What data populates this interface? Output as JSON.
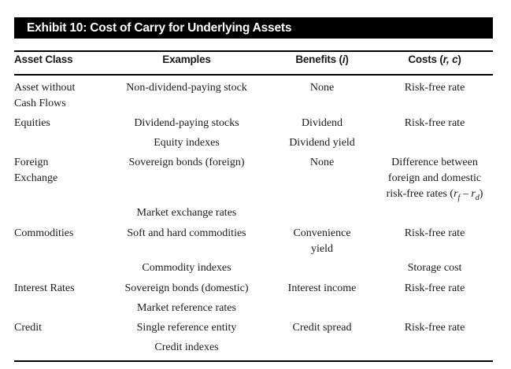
{
  "exhibit": {
    "title": "Exhibit 10: Cost of Carry for Underlying Assets"
  },
  "headers": {
    "asset_class": "Asset Class",
    "examples": "Examples",
    "benefits_prefix": "Benefits (",
    "benefits_var": "i",
    "benefits_suffix": ")",
    "costs_prefix": "Costs (",
    "costs_var": "r, c",
    "costs_suffix": ")"
  },
  "rows": [
    {
      "asset_class": [
        "Asset without",
        "Cash Flows"
      ],
      "example": "Non-dividend-paying stock",
      "benefit": [
        "None"
      ],
      "cost": [
        "Risk-free rate"
      ]
    },
    {
      "asset_class": [
        "Equities"
      ],
      "example": "Dividend-paying stocks",
      "benefit": [
        "Dividend"
      ],
      "cost": [
        "Risk-free rate"
      ]
    },
    {
      "asset_class": [],
      "example": "Equity indexes",
      "benefit": [
        "Dividend yield"
      ],
      "cost": []
    },
    {
      "asset_class": [
        "Foreign",
        "Exchange"
      ],
      "example": "Sovereign bonds (foreign)",
      "benefit": [
        "None"
      ],
      "cost": [
        "Difference between",
        "foreign and domestic",
        "risk-free rates ("
      ],
      "cost_formula": {
        "r1": "r",
        "sub1": "f",
        "minus": " – ",
        "r2": "r",
        "sub2": "d",
        "close": ")"
      }
    },
    {
      "asset_class": [],
      "example": "Market exchange rates",
      "benefit": [],
      "cost": []
    },
    {
      "asset_class": [
        "Commodities"
      ],
      "example": "Soft and hard commodities",
      "benefit": [
        "Convenience",
        "yield"
      ],
      "cost": [
        "Risk-free rate"
      ]
    },
    {
      "asset_class": [],
      "example": "Commodity indexes",
      "benefit": [],
      "cost": [
        "Storage cost"
      ]
    },
    {
      "asset_class": [
        "Interest Rates"
      ],
      "example": "Sovereign bonds (domestic)",
      "benefit": [
        "Interest income"
      ],
      "cost": [
        "Risk-free rate"
      ]
    },
    {
      "asset_class": [],
      "example": "Market reference rates",
      "benefit": [],
      "cost": []
    },
    {
      "asset_class": [
        "Credit"
      ],
      "example": "Single reference entity",
      "benefit": [
        "Credit spread"
      ],
      "cost": [
        "Risk-free rate"
      ]
    },
    {
      "asset_class": [],
      "example": "Credit indexes",
      "benefit": [],
      "cost": []
    }
  ]
}
